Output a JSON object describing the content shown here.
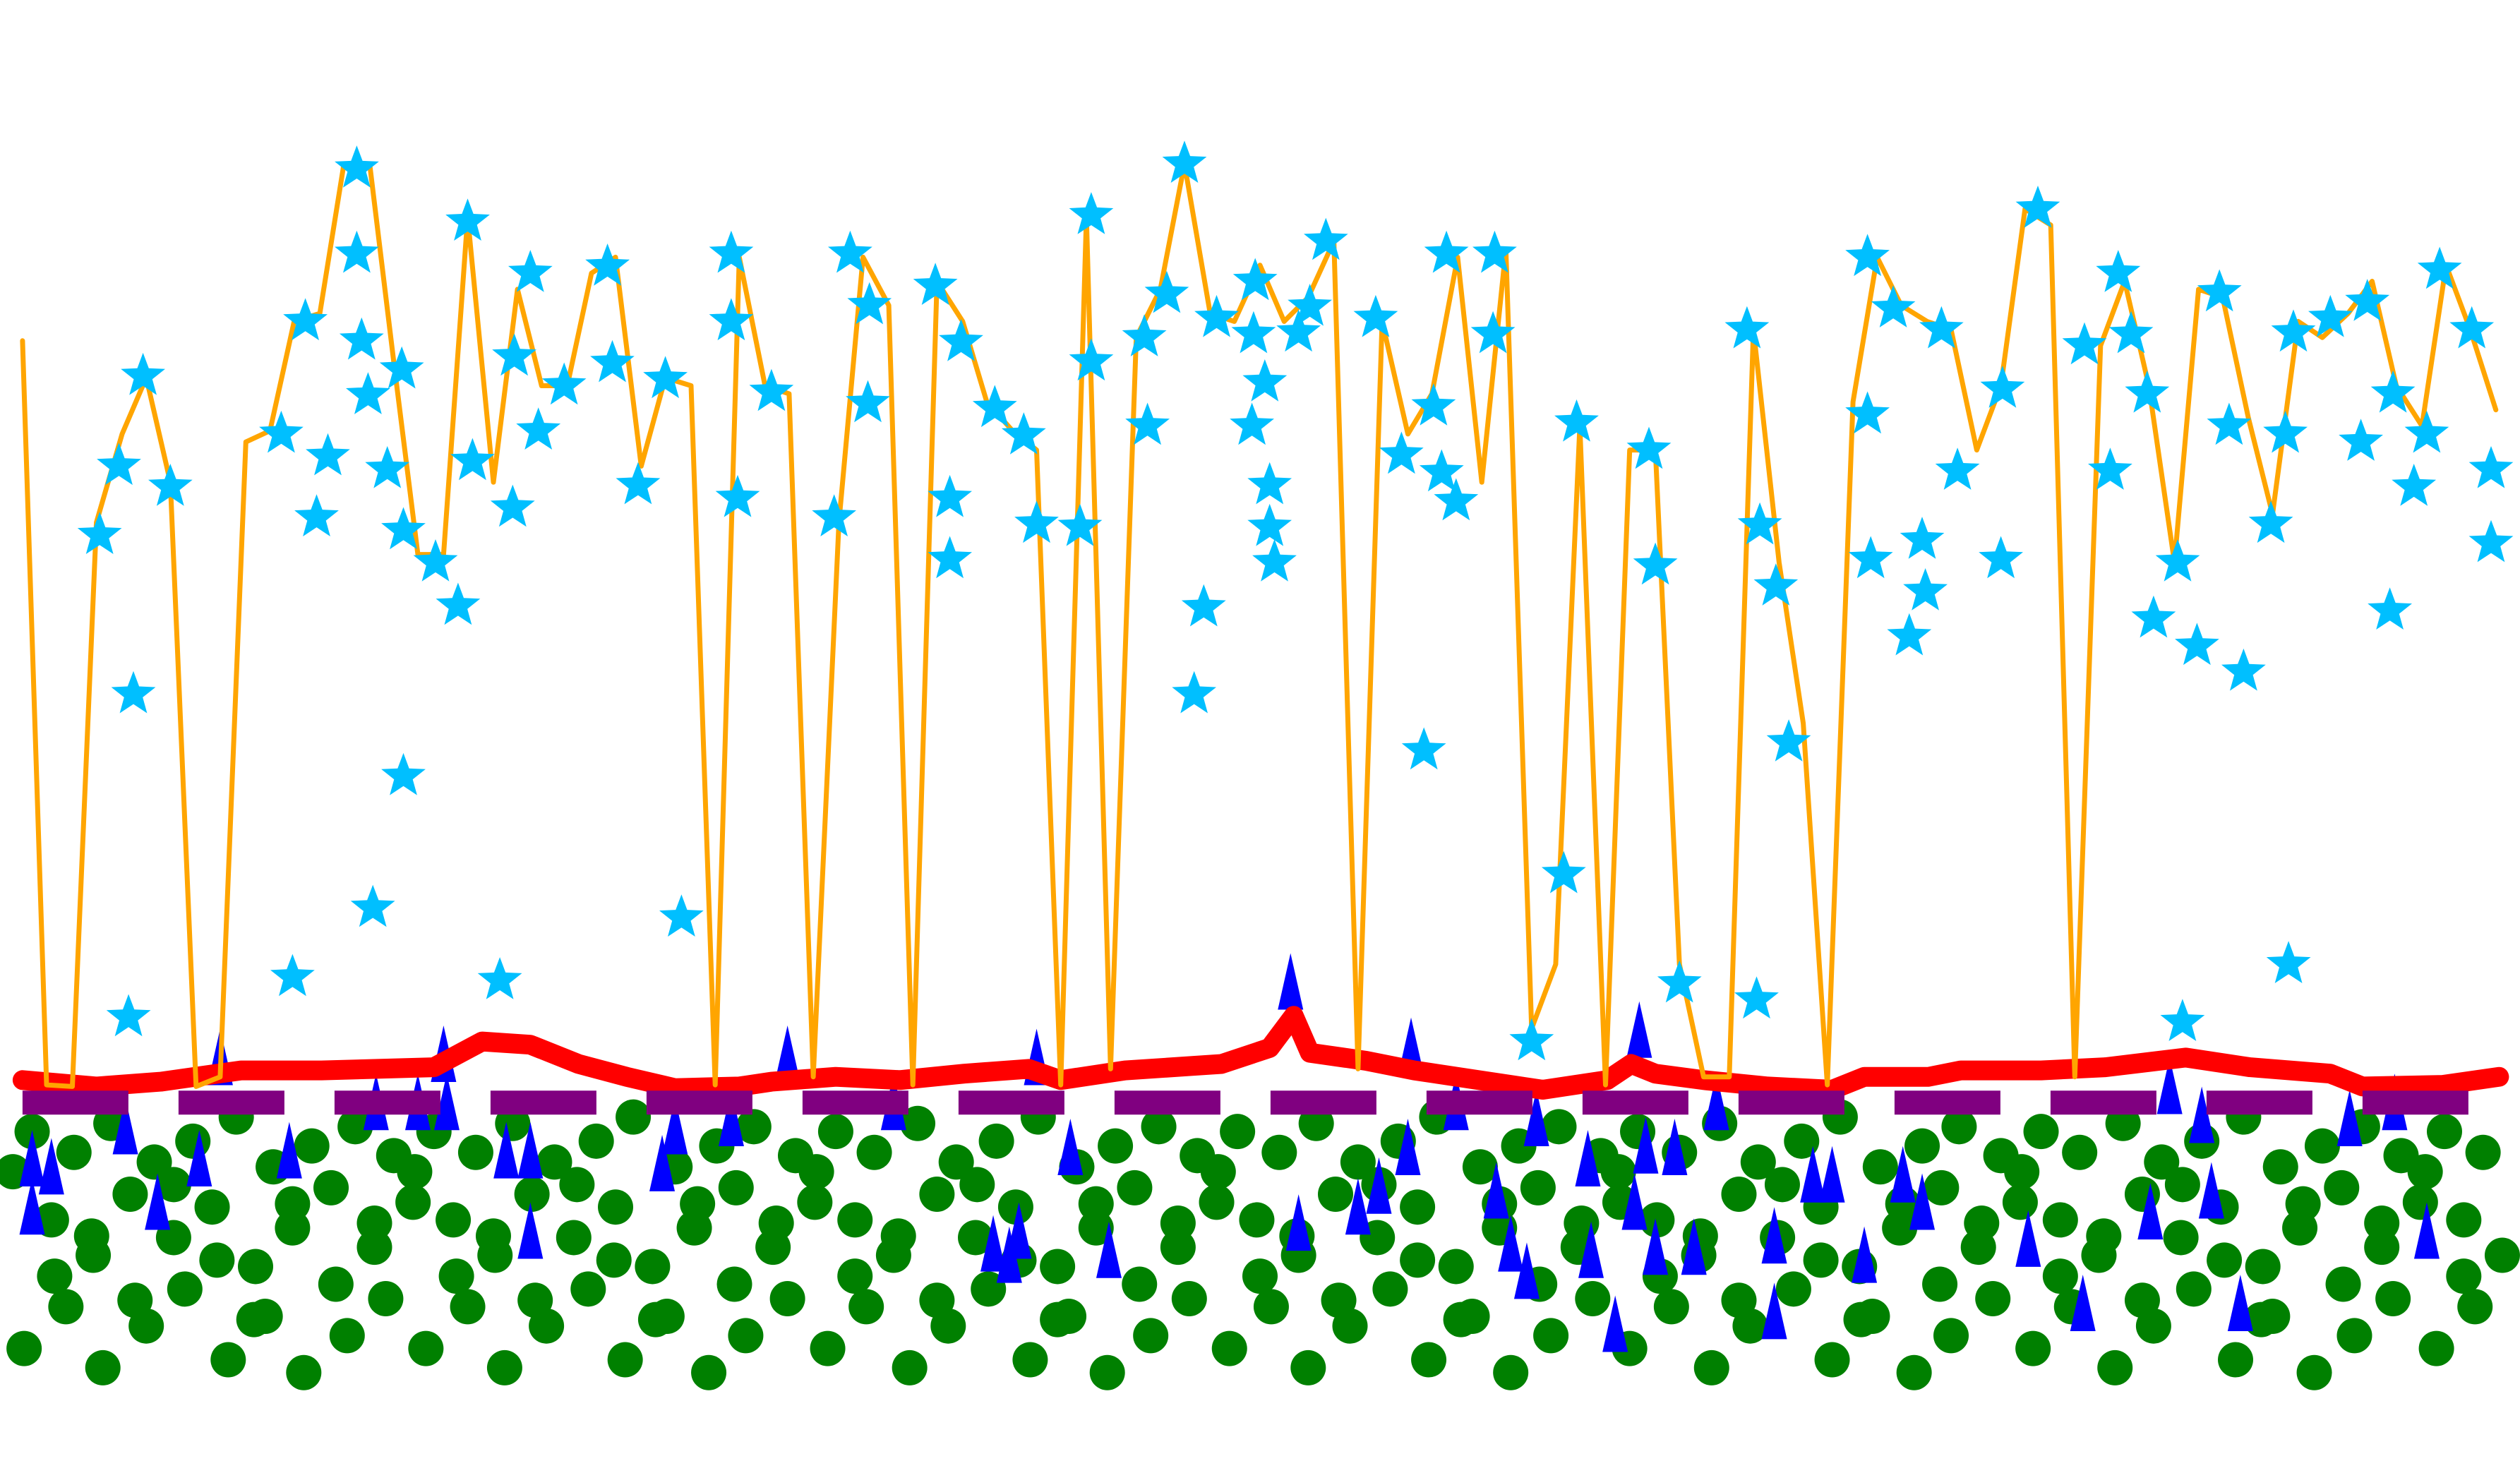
{
  "chart_data": {
    "type": "scatter",
    "xlim": [
      0,
      1568
    ],
    "ylim": [
      0,
      909
    ],
    "series": [
      {
        "type": "scatter",
        "marker": "circle",
        "color": "#008000",
        "x": [
          20,
          46,
          69,
          96,
          120,
          147,
          170,
          194,
          221,
          245,
          270,
          296,
          319,
          345,
          371,
          394,
          420,
          446,
          469,
          495,
          520,
          544,
          571,
          595,
          620,
          646,
          670,
          694,
          721,
          745,
          770,
          796,
          819,
          845,
          870,
          894,
          921,
          945,
          970,
          996,
          1019,
          1045,
          1070,
          1094,
          1121,
          1145,
          1170,
          1196,
          1219,
          1245,
          1270,
          1294,
          1321,
          1345,
          1370,
          1396,
          1419,
          1445,
          1470,
          1494,
          1521,
          1545,
          32,
          58,
          81,
          108,
          132,
          159,
          182,
          206,
          233,
          257,
          282,
          308,
          331,
          357,
          383,
          406,
          432,
          458,
          481,
          507,
          532,
          556,
          583,
          607,
          632,
          658,
          682,
          706,
          733,
          757,
          782,
          808,
          831,
          857,
          882,
          906,
          933,
          957,
          982,
          1008,
          1031,
          1057,
          1082,
          1106,
          1133,
          1157,
          1182,
          1208,
          1231,
          1257,
          1282,
          1306,
          1333,
          1357,
          1382,
          1408,
          1431,
          1457,
          1482,
          1506,
          1533,
          1557,
          15,
          41,
          64,
          91,
          115,
          142,
          165,
          189,
          216,
          240,
          265,
          291,
          314,
          340,
          366,
          389,
          415,
          441,
          464,
          490,
          515,
          539,
          566,
          590,
          615,
          641,
          665,
          689,
          716,
          740,
          765,
          791,
          814,
          840,
          865,
          889,
          916,
          940,
          965,
          991,
          1014,
          1040,
          1065,
          1089,
          1116,
          1140,
          1165,
          1191,
          1214,
          1240,
          1265,
          1289,
          1316,
          1340,
          1365,
          1391,
          1414,
          1440,
          1465,
          1489,
          1516,
          1540,
          8,
          34,
          57,
          84,
          108,
          135,
          158,
          182,
          209,
          233,
          258,
          284,
          307,
          333,
          359,
          382,
          408,
          434,
          457,
          483,
          508,
          532,
          559,
          583,
          608,
          634,
          658,
          682,
          709,
          733,
          758,
          784,
          807,
          833,
          858,
          882,
          909,
          933,
          958,
          984,
          1007,
          1033,
          1058,
          1082,
          1109,
          1133,
          1158,
          1184,
          1207,
          1233,
          1258,
          1282,
          1309,
          1333,
          1358,
          1384,
          1407,
          1433,
          1458,
          1482,
          1509,
          1533
        ],
        "y": [
          205,
          192,
          210,
          186,
          199,
          214,
          183,
          196,
          208,
          190,
          205,
          192,
          210,
          186,
          199,
          214,
          183,
          196,
          208,
          190,
          205,
          192,
          210,
          186,
          199,
          214,
          183,
          196,
          208,
          190,
          205,
          192,
          210,
          186,
          199,
          214,
          183,
          196,
          208,
          190,
          205,
          192,
          210,
          186,
          199,
          214,
          183,
          196,
          208,
          190,
          205,
          192,
          210,
          186,
          199,
          214,
          183,
          196,
          208,
          190,
          205,
          192,
          150,
          128,
          166,
          139,
          158,
          121,
          145,
          170,
          133,
          161,
          150,
          128,
          166,
          139,
          158,
          121,
          145,
          170,
          133,
          161,
          150,
          128,
          166,
          139,
          158,
          121,
          145,
          170,
          133,
          161,
          150,
          128,
          166,
          139,
          158,
          121,
          145,
          170,
          133,
          161,
          150,
          128,
          166,
          139,
          158,
          121,
          145,
          170,
          133,
          161,
          150,
          128,
          166,
          139,
          158,
          121,
          145,
          170,
          133,
          161,
          150,
          128,
          70,
          96,
          58,
          84,
          107,
          63,
          90,
          55,
          78,
          101,
          70,
          96,
          58,
          84,
          107,
          63,
          90,
          55,
          78,
          101,
          70,
          96,
          58,
          84,
          107,
          63,
          90,
          55,
          78,
          101,
          70,
          96,
          58,
          84,
          107,
          63,
          90,
          55,
          78,
          101,
          70,
          96,
          58,
          84,
          107,
          63,
          90,
          55,
          78,
          101,
          70,
          96,
          58,
          84,
          107,
          63,
          90,
          55,
          78,
          101,
          70,
          96,
          180,
          115,
          140,
          100,
          172,
          125,
          88,
          160,
          110,
          148,
          180,
          115,
          140,
          100,
          172,
          125,
          88,
          160,
          110,
          148,
          180,
          115,
          140,
          100,
          172,
          125,
          88,
          160,
          110,
          148,
          180,
          115,
          140,
          100,
          172,
          125,
          88,
          160,
          110,
          148,
          180,
          115,
          140,
          100,
          172,
          125,
          88,
          160,
          110,
          148,
          180,
          115,
          140,
          100,
          172,
          125,
          88,
          160,
          110,
          148,
          180,
          115
        ]
      },
      {
        "type": "scatter",
        "marker": "triangle",
        "color": "#0000ff",
        "x": [
          20,
          32,
          20,
          78,
          98,
          124,
          137,
          180,
          234,
          278,
          260,
          276,
          315,
          330,
          330,
          412,
          420,
          455,
          490,
          556,
          618,
          628,
          634,
          645,
          666,
          690,
          803,
          808,
          845,
          858,
          876,
          878,
          906,
          931,
          940,
          950,
          956,
          988,
          990,
          1005,
          1017,
          1020,
          1024,
          1030,
          1042,
          1054,
          1068,
          1104,
          1104,
          1128,
          1140,
          1160,
          1184,
          1196,
          1262,
          1296,
          1338,
          1350,
          1370,
          1376,
          1394,
          1462,
          1490,
          1510
        ],
        "y": [
          184,
          179,
          154,
          204,
          157,
          184,
          247,
          189,
          219,
          219,
          219,
          249,
          189,
          189,
          139,
          181,
          204,
          209,
          249,
          219,
          131,
          124,
          139,
          247,
          191,
          127,
          294,
          144,
          154,
          167,
          191,
          254,
          219,
          164,
          131,
          114,
          209,
          184,
          127,
          81,
          157,
          264,
          192,
          129,
          191,
          129,
          219,
          136,
          89,
          174,
          174,
          124,
          174,
          157,
          134,
          94,
          151,
          229,
          211,
          164,
          94,
          209,
          219,
          139
        ]
      },
      {
        "type": "line",
        "color": "#ff0000",
        "x": [
          14,
          60,
          100,
          150,
          200,
          270,
          300,
          330,
          360,
          390,
          420,
          460,
          480,
          520,
          560,
          600,
          640,
          660,
          700,
          760,
          790,
          805,
          815,
          850,
          880,
          920,
          960,
          1000,
          1015,
          1030,
          1060,
          1100,
          1140,
          1160,
          1200,
          1220,
          1270,
          1310,
          1360,
          1400,
          1450,
          1470,
          1520,
          1555
        ],
        "y": [
          237,
          233,
          236,
          243,
          243,
          245,
          261,
          259,
          247,
          239,
          232,
          233,
          236,
          239,
          237,
          241,
          244,
          237,
          243,
          247,
          257,
          277,
          254,
          249,
          243,
          237,
          231,
          237,
          247,
          241,
          237,
          233,
          231,
          239,
          239,
          243,
          243,
          245,
          251,
          245,
          241,
          233,
          234,
          239
        ]
      },
      {
        "type": "line",
        "dashed": true,
        "color": "#800080",
        "x": [
          14,
          1555
        ],
        "y": [
          223,
          223
        ]
      },
      {
        "type": "line",
        "color": "#ffa500",
        "x": [
          14,
          29,
          45,
          60,
          76,
          91,
          106,
          122,
          137,
          153,
          168,
          183,
          199,
          214,
          230,
          245,
          260,
          276,
          291,
          307,
          322,
          337,
          353,
          368,
          383,
          399,
          414,
          430,
          445,
          460,
          476,
          491,
          506,
          522,
          537,
          553,
          568,
          583,
          599,
          614,
          630,
          645,
          660,
          676,
          691,
          707,
          722,
          737,
          753,
          768,
          784,
          799,
          814,
          830,
          845,
          860,
          876,
          891,
          907,
          922,
          937,
          953,
          968,
          983,
          999,
          1014,
          1030,
          1045,
          1060,
          1076,
          1091,
          1107,
          1122,
          1137,
          1153,
          1168,
          1183,
          1199,
          1214,
          1230,
          1245,
          1260,
          1276,
          1291,
          1307,
          1322,
          1337,
          1353,
          1368,
          1383,
          1399,
          1414,
          1430,
          1445,
          1461,
          1476,
          1491,
          1507,
          1522,
          1537,
          1553
        ],
        "y": [
          697,
          234,
          233,
          584,
          639,
          674,
          609,
          233,
          239,
          634,
          641,
          709,
          714,
          807,
          807,
          684,
          564,
          564,
          774,
          609,
          729,
          669,
          669,
          739,
          749,
          619,
          674,
          669,
          234,
          749,
          669,
          664,
          239,
          584,
          749,
          719,
          234,
          734,
          709,
          659,
          641,
          629,
          234,
          774,
          244,
          699,
          729,
          807,
          714,
          709,
          744,
          709,
          724,
          759,
          244,
          709,
          639,
          664,
          749,
          609,
          754,
          269,
          309,
          644,
          234,
          629,
          629,
          309,
          239,
          239,
          704,
          559,
          459,
          234,
          659,
          749,
          719,
          709,
          704,
          629,
          669,
          779,
          769,
          239,
          694,
          734,
          669,
          559,
          729,
          724,
          649,
          589,
          709,
          699,
          714,
          734,
          669,
          644,
          744,
          704,
          654
        ]
      },
      {
        "type": "scatter",
        "marker": "star",
        "color": "#00bfff",
        "x": [
          62,
          74,
          83,
          80,
          89,
          106,
          175,
          182,
          190,
          197,
          204,
          222,
          222,
          225,
          229,
          232,
          241,
          250,
          251,
          251,
          271,
          285,
          291,
          294,
          311,
          319,
          320,
          330,
          335,
          351,
          378,
          381,
          397,
          414,
          424,
          455,
          455,
          459,
          480,
          519,
          529,
          540,
          541,
          582,
          591,
          591,
          598,
          619,
          637,
          645,
          672,
          679,
          679,
          712,
          714,
          726,
          737,
          743,
          749,
          757,
          781,
          780,
          787,
          779,
          790,
          790,
          793,
          808,
          815,
          825,
          856,
          872,
          886,
          892,
          897,
          906,
          900,
          929,
          930,
          953,
          973,
          981,
          1026,
          1030,
          1045,
          1087,
          1093,
          1095,
          1105,
          1113,
          1162,
          1162,
          1164,
          1178,
          1188,
          1196,
          1198,
          1208,
          1218,
          1246,
          1245,
          1268,
          1297,
          1313,
          1318,
          1326,
          1336,
          1340,
          1355,
          1358,
          1367,
          1381,
          1387,
          1396,
          1413,
          1422,
          1424,
          1427,
          1450,
          1469,
          1473,
          1487,
          1489,
          1502,
          1510,
          1518,
          1538,
          1550,
          1550
        ],
        "y": [
          576,
          619,
          477,
          276,
          675,
          606,
          639,
          301,
          709,
          587,
          625,
          804,
          751,
          697,
          663,
          344,
          617,
          679,
          426,
          579,
          559,
          532,
          771,
          622,
          299,
          593,
          687,
          739,
          641,
          669,
          743,
          683,
          607,
          673,
          338,
          751,
          709,
          599,
          665,
          587,
          751,
          658,
          719,
          731,
          599,
          561,
          696,
          655,
          638,
          583,
          581,
          684,
          775,
          699,
          644,
          726,
          807,
          477,
          531,
          711,
          734,
          701,
          671,
          644,
          607,
          581,
          559,
          702,
          718,
          759,
          711,
          626,
          442,
          656,
          615,
          597,
          751,
          701,
          751,
          261,
          365,
          646,
          629,
          557,
          297,
          704,
          287,
          582,
          544,
          447,
          749,
          651,
          561,
          717,
          513,
          573,
          541,
          704,
          616,
          667,
          561,
          779,
          694,
          616,
          739,
          701,
          664,
          524,
          559,
          273,
          507,
          727,
          644,
          491,
          583,
          639,
          309,
          702,
          711,
          634,
          721,
          529,
          664,
          606,
          639,
          741,
          704,
          617,
          571
        ]
      }
    ]
  }
}
